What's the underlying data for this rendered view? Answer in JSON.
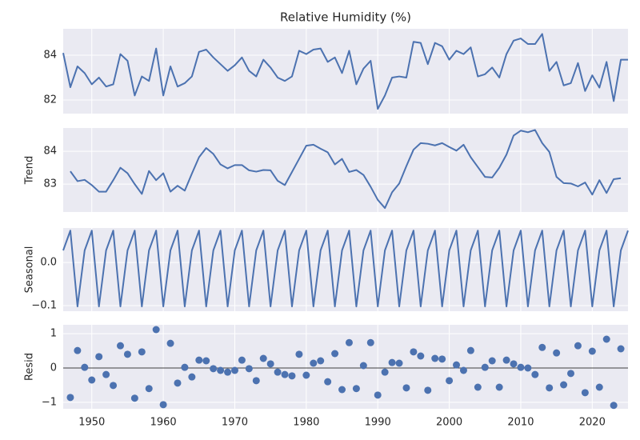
{
  "chart_data": [
    {
      "type": "line",
      "title": "Relative Humidity (%)",
      "color": "#4c72b0",
      "grid": true,
      "show_xticklabels": false,
      "x": [
        1946,
        1947,
        1948,
        1949,
        1950,
        1951,
        1952,
        1953,
        1954,
        1955,
        1956,
        1957,
        1958,
        1959,
        1960,
        1961,
        1962,
        1963,
        1964,
        1965,
        1966,
        1967,
        1968,
        1969,
        1970,
        1971,
        1972,
        1973,
        1974,
        1975,
        1976,
        1977,
        1978,
        1979,
        1980,
        1981,
        1982,
        1983,
        1984,
        1985,
        1986,
        1987,
        1988,
        1989,
        1990,
        1991,
        1992,
        1993,
        1994,
        1995,
        1996,
        1997,
        1998,
        1999,
        2000,
        2001,
        2002,
        2003,
        2004,
        2005,
        2006,
        2007,
        2008,
        2009,
        2010,
        2011,
        2012,
        2013,
        2014,
        2015,
        2016,
        2017,
        2018,
        2019,
        2020,
        2021,
        2022,
        2023,
        2024,
        2025
      ],
      "values": [
        84.1,
        82.57,
        83.5,
        83.2,
        82.7,
        83.0,
        82.6,
        82.7,
        84.05,
        83.75,
        82.2,
        83.05,
        82.85,
        84.3,
        82.2,
        83.5,
        82.6,
        82.75,
        83.05,
        84.15,
        84.25,
        83.9,
        83.6,
        83.3,
        83.55,
        83.9,
        83.3,
        83.05,
        83.8,
        83.45,
        83.0,
        82.85,
        83.05,
        84.2,
        84.05,
        84.25,
        84.3,
        83.7,
        83.9,
        83.2,
        84.2,
        82.7,
        83.4,
        83.75,
        81.6,
        82.2,
        83.0,
        83.05,
        83.0,
        84.6,
        84.55,
        83.6,
        84.55,
        84.4,
        83.8,
        84.2,
        84.05,
        84.35,
        83.05,
        83.15,
        83.45,
        83.0,
        84.05,
        84.65,
        84.75,
        84.5,
        84.5,
        84.95,
        83.3,
        83.7,
        82.65,
        82.75,
        83.65,
        82.4,
        83.1,
        82.55,
        83.7,
        81.95,
        83.8,
        83.8
      ],
      "xlim": [
        1946,
        2025
      ],
      "xticks": [
        1950,
        1960,
        1970,
        1980,
        1990,
        2000,
        2010,
        2020
      ],
      "ylim": [
        81.39,
        85.18
      ],
      "yticks": [
        82,
        84
      ]
    },
    {
      "type": "line",
      "ylabel": "Trend",
      "color": "#4c72b0",
      "grid": true,
      "show_xticklabels": false,
      "x": [
        1946,
        1947,
        1948,
        1949,
        1950,
        1951,
        1952,
        1953,
        1954,
        1955,
        1956,
        1957,
        1958,
        1959,
        1960,
        1961,
        1962,
        1963,
        1964,
        1965,
        1966,
        1967,
        1968,
        1969,
        1970,
        1971,
        1972,
        1973,
        1974,
        1975,
        1976,
        1977,
        1978,
        1979,
        1980,
        1981,
        1982,
        1983,
        1984,
        1985,
        1986,
        1987,
        1988,
        1989,
        1990,
        1991,
        1992,
        1993,
        1994,
        1995,
        1996,
        1997,
        1998,
        1999,
        2000,
        2001,
        2002,
        2003,
        2004,
        2005,
        2006,
        2007,
        2008,
        2009,
        2010,
        2011,
        2012,
        2013,
        2014,
        2015,
        2016,
        2017,
        2018,
        2019,
        2020,
        2021,
        2022,
        2023,
        2024,
        2025
      ],
      "values": [
        null,
        83.39,
        83.09,
        83.13,
        82.97,
        82.77,
        82.77,
        83.12,
        83.5,
        83.33,
        83.0,
        82.7,
        83.4,
        83.12,
        83.33,
        82.77,
        82.95,
        82.8,
        83.32,
        83.82,
        84.1,
        83.92,
        83.6,
        83.48,
        83.58,
        83.58,
        83.42,
        83.38,
        83.43,
        83.42,
        83.1,
        82.97,
        83.37,
        83.77,
        84.17,
        84.2,
        84.08,
        83.97,
        83.6,
        83.77,
        83.37,
        83.43,
        83.28,
        82.92,
        82.52,
        82.27,
        82.75,
        83.02,
        83.55,
        84.05,
        84.25,
        84.23,
        84.18,
        84.25,
        84.13,
        84.02,
        84.2,
        83.82,
        83.52,
        83.22,
        83.2,
        83.5,
        83.9,
        84.48,
        84.63,
        84.58,
        84.65,
        84.25,
        83.98,
        83.22,
        83.03,
        83.02,
        82.93,
        83.05,
        82.68,
        83.12,
        82.73,
        83.15,
        83.18,
        null
      ],
      "xlim": [
        1946,
        2025
      ],
      "xticks": [
        1950,
        1960,
        1970,
        1980,
        1990,
        2000,
        2010,
        2020
      ],
      "ylim": [
        82.15,
        84.71
      ],
      "yticks": [
        83,
        84
      ]
    },
    {
      "type": "line",
      "ylabel": "Seasonal",
      "color": "#4c72b0",
      "grid": true,
      "show_xticklabels": false,
      "x": [
        1946,
        1947,
        1948,
        1949,
        1950,
        1951,
        1952,
        1953,
        1954,
        1955,
        1956,
        1957,
        1958,
        1959,
        1960,
        1961,
        1962,
        1963,
        1964,
        1965,
        1966,
        1967,
        1968,
        1969,
        1970,
        1971,
        1972,
        1973,
        1974,
        1975,
        1976,
        1977,
        1978,
        1979,
        1980,
        1981,
        1982,
        1983,
        1984,
        1985,
        1986,
        1987,
        1988,
        1989,
        1990,
        1991,
        1992,
        1993,
        1994,
        1995,
        1996,
        1997,
        1998,
        1999,
        2000,
        2001,
        2002,
        2003,
        2004,
        2005,
        2006,
        2007,
        2008,
        2009,
        2010,
        2011,
        2012,
        2013,
        2014,
        2015,
        2016,
        2017,
        2018,
        2019,
        2020,
        2021,
        2022,
        2023,
        2024,
        2025
      ],
      "values": [
        0.028,
        0.074,
        -0.102,
        0.028,
        0.074,
        -0.102,
        0.028,
        0.074,
        -0.102,
        0.028,
        0.074,
        -0.102,
        0.028,
        0.074,
        -0.102,
        0.028,
        0.074,
        -0.102,
        0.028,
        0.074,
        -0.102,
        0.028,
        0.074,
        -0.102,
        0.028,
        0.074,
        -0.102,
        0.028,
        0.074,
        -0.102,
        0.028,
        0.074,
        -0.102,
        0.028,
        0.074,
        -0.102,
        0.028,
        0.074,
        -0.102,
        0.028,
        0.074,
        -0.102,
        0.028,
        0.074,
        -0.102,
        0.028,
        0.074,
        -0.102,
        0.028,
        0.074,
        -0.102,
        0.028,
        0.074,
        -0.102,
        0.028,
        0.074,
        -0.102,
        0.028,
        0.074,
        -0.102,
        0.028,
        0.074,
        -0.102,
        0.028,
        0.074,
        -0.102,
        0.028,
        0.074,
        -0.102,
        0.028,
        0.074,
        -0.102,
        0.028,
        0.074,
        -0.102,
        0.028,
        0.074,
        -0.102,
        0.028,
        0.074
      ],
      "xlim": [
        1946,
        2025
      ],
      "xticks": [
        1950,
        1960,
        1970,
        1980,
        1990,
        2000,
        2010,
        2020
      ],
      "ylim": [
        -0.113,
        0.08
      ],
      "yticks": [
        {
          "value": 0,
          "label": "0.0"
        },
        {
          "value": -0.1,
          "label": "−0.1"
        }
      ]
    },
    {
      "type": "scatter",
      "ylabel": "Resid",
      "color": "#4c72b0",
      "grid": true,
      "show_xticklabels": true,
      "hline": 0,
      "x": [
        1946,
        1947,
        1948,
        1949,
        1950,
        1951,
        1952,
        1953,
        1954,
        1955,
        1956,
        1957,
        1958,
        1959,
        1960,
        1961,
        1962,
        1963,
        1964,
        1965,
        1966,
        1967,
        1968,
        1969,
        1970,
        1971,
        1972,
        1973,
        1974,
        1975,
        1976,
        1977,
        1978,
        1979,
        1980,
        1981,
        1982,
        1983,
        1984,
        1985,
        1986,
        1987,
        1988,
        1989,
        1990,
        1991,
        1992,
        1993,
        1994,
        1995,
        1996,
        1997,
        1998,
        1999,
        2000,
        2001,
        2002,
        2003,
        2004,
        2005,
        2006,
        2007,
        2008,
        2009,
        2010,
        2011,
        2012,
        2013,
        2014,
        2015,
        2016,
        2017,
        2018,
        2019,
        2020,
        2021,
        2022,
        2023,
        2024,
        2025
      ],
      "values": [
        null,
        -0.86,
        0.51,
        0.02,
        -0.35,
        0.33,
        -0.19,
        -0.51,
        0.65,
        0.4,
        -0.88,
        0.47,
        -0.6,
        1.12,
        -1.07,
        0.72,
        -0.44,
        0.02,
        -0.26,
        0.23,
        0.21,
        -0.02,
        -0.07,
        -0.12,
        -0.07,
        0.23,
        -0.02,
        -0.37,
        0.28,
        0.12,
        -0.12,
        -0.19,
        -0.23,
        0.4,
        -0.21,
        0.14,
        0.21,
        -0.4,
        0.42,
        -0.63,
        0.74,
        -0.6,
        0.07,
        0.74,
        -0.79,
        -0.12,
        0.16,
        0.14,
        -0.58,
        0.47,
        0.35,
        -0.65,
        0.28,
        0.26,
        -0.37,
        0.09,
        -0.07,
        0.51,
        -0.56,
        0.02,
        0.21,
        -0.56,
        0.23,
        0.12,
        0.02,
        0.0,
        -0.19,
        0.6,
        -0.58,
        0.44,
        -0.49,
        -0.16,
        0.65,
        -0.72,
        0.49,
        -0.56,
        0.84,
        -1.09,
        0.56,
        null
      ],
      "xlim": [
        1946,
        2025
      ],
      "xticks": [
        1950,
        1960,
        1970,
        1980,
        1990,
        2000,
        2010,
        2020
      ],
      "ylim": [
        -1.19,
        1.26
      ],
      "yticks": [
        1,
        0,
        {
          "value": -1,
          "label": "−1"
        }
      ]
    }
  ]
}
